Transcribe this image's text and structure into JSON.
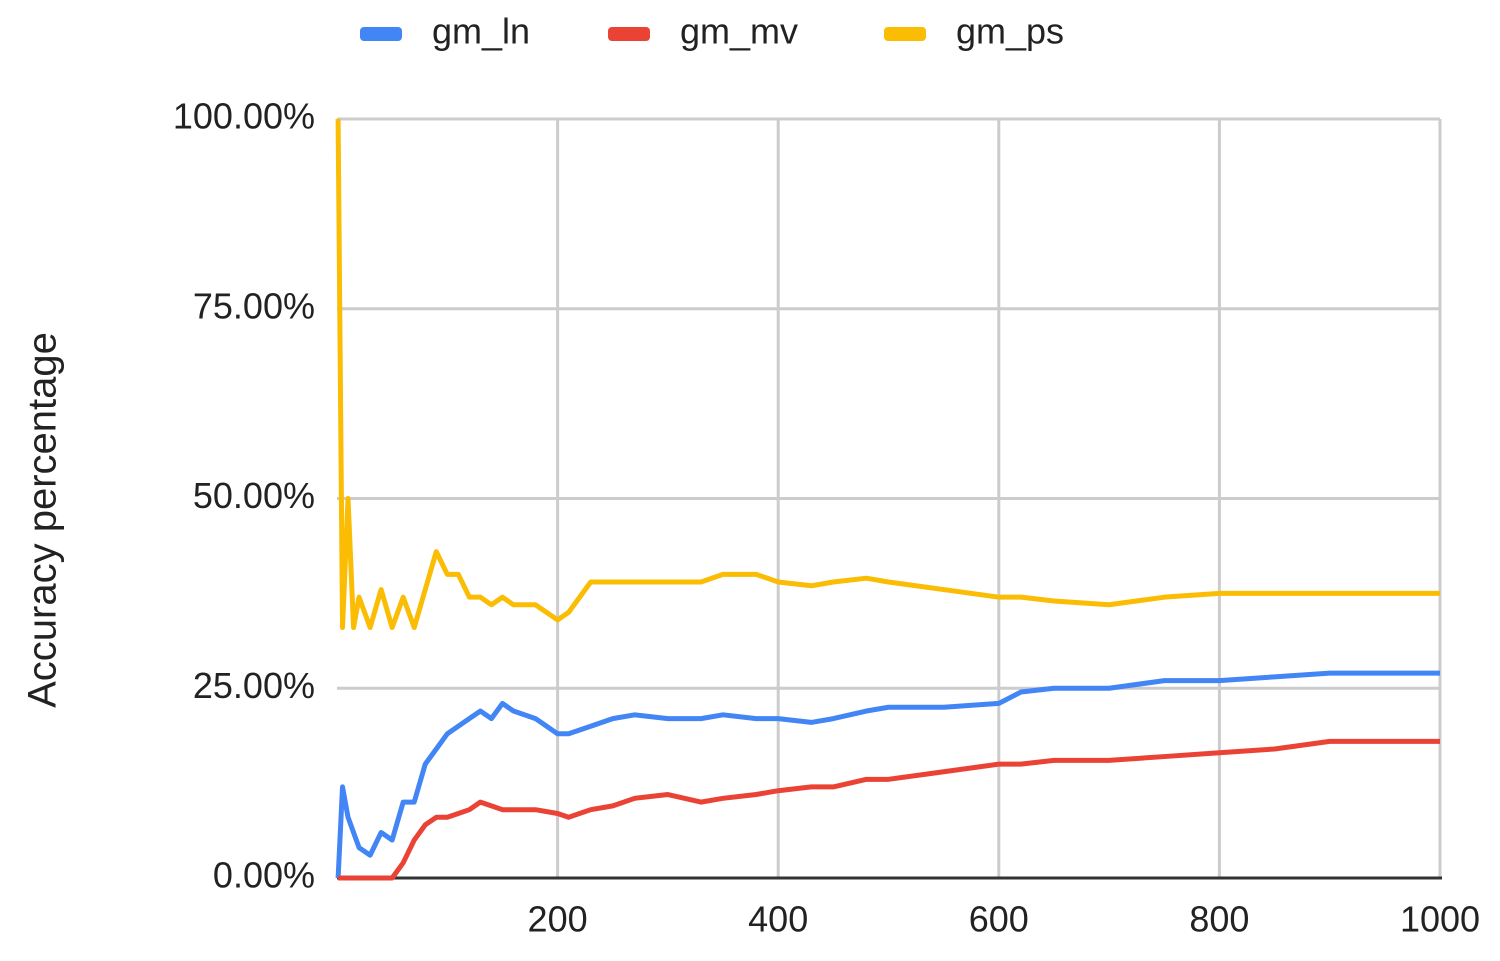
{
  "chart_data": {
    "type": "line",
    "y_label": "Accuracy percentage",
    "x": [
      1,
      5,
      10,
      15,
      20,
      30,
      40,
      50,
      60,
      70,
      80,
      90,
      100,
      110,
      120,
      130,
      140,
      150,
      160,
      180,
      200,
      210,
      230,
      250,
      270,
      300,
      330,
      350,
      380,
      400,
      430,
      450,
      480,
      500,
      550,
      600,
      620,
      650,
      700,
      750,
      800,
      850,
      900,
      950,
      1000
    ],
    "series": [
      {
        "name": "gm_ln",
        "color": "#4285f4",
        "values": [
          0,
          12,
          8,
          6,
          4,
          3,
          6,
          5,
          10,
          10,
          15,
          17,
          19,
          20,
          21,
          22,
          21,
          23,
          22,
          21,
          19,
          19,
          20,
          21,
          21.5,
          21,
          21,
          21.5,
          21,
          21,
          20.5,
          21,
          22,
          22.5,
          22.5,
          23,
          24.5,
          25,
          25,
          26,
          26,
          26.5,
          27,
          27,
          27
        ]
      },
      {
        "name": "gm_mv",
        "color": "#ea4335",
        "values": [
          0,
          0,
          0,
          0,
          0,
          0,
          0,
          0,
          2,
          5,
          7,
          8,
          8,
          8.5,
          9,
          10,
          9.5,
          9,
          9,
          9,
          8.5,
          8,
          9,
          9.5,
          10.5,
          11,
          10,
          10.5,
          11,
          11.5,
          12,
          12,
          13,
          13,
          14,
          15,
          15,
          15.5,
          15.5,
          16,
          16.5,
          17,
          18,
          18,
          18
        ]
      },
      {
        "name": "gm_ps",
        "color": "#fbbc04",
        "values": [
          100,
          33,
          50,
          33,
          37,
          33,
          38,
          33,
          37,
          33,
          38,
          43,
          40,
          40,
          37,
          37,
          36,
          37,
          36,
          36,
          34,
          35,
          39,
          39,
          39,
          39,
          39,
          40,
          40,
          39,
          38.5,
          39,
          39.5,
          39,
          38,
          37,
          37,
          36.5,
          36,
          37,
          37.5,
          37.5,
          37.5,
          37.5,
          37.5
        ]
      }
    ],
    "xlim": [
      0,
      1000
    ],
    "xticks": [
      200,
      400,
      600,
      800,
      1000
    ],
    "ylim": [
      0,
      100
    ],
    "yticks": [
      {
        "value": 0,
        "label": "0.00%"
      },
      {
        "value": 25,
        "label": "25.00%"
      },
      {
        "value": 50,
        "label": "50.00%"
      },
      {
        "value": 75,
        "label": "75.00%"
      },
      {
        "value": 100,
        "label": "100.00%"
      }
    ],
    "grid": true,
    "legend": "top"
  }
}
